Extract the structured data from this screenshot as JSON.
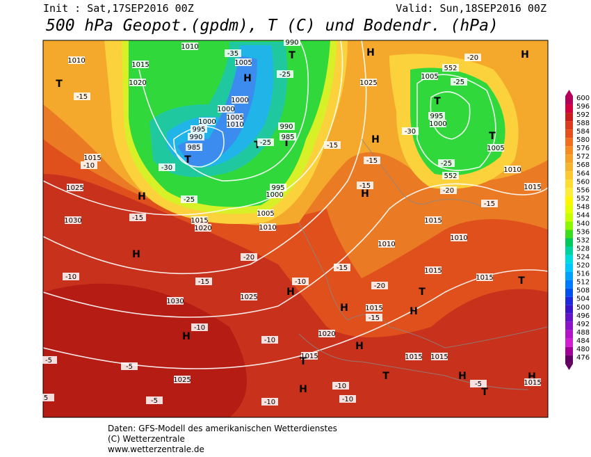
{
  "header": {
    "init": "Init : Sat,17SEP2016 00Z",
    "valid": "Valid: Sun,18SEP2016 00Z",
    "title": "500 hPa Geopot.(gpdm), T (C) und Bodendr. (hPa)"
  },
  "colorbar": {
    "labels": [
      "600",
      "596",
      "592",
      "588",
      "584",
      "580",
      "576",
      "572",
      "568",
      "564",
      "560",
      "556",
      "552",
      "548",
      "544",
      "540",
      "536",
      "532",
      "528",
      "524",
      "520",
      "516",
      "512",
      "508",
      "504",
      "500",
      "496",
      "492",
      "488",
      "484",
      "480",
      "476"
    ]
  },
  "map_labels": [
    "1010",
    "1015",
    "1020",
    "T",
    "-15",
    "1010",
    "-35",
    "1005",
    "H",
    "990",
    "T",
    "-25",
    "1000",
    "1000",
    "1005",
    "1010",
    "1000",
    "995",
    "990",
    "985",
    "T",
    "-30",
    "-25",
    "H",
    "-15",
    "1015",
    "1020",
    "1005",
    "1010",
    "995",
    "1000",
    "T",
    "T",
    "990",
    "985",
    "-25",
    "H",
    "1025",
    "H",
    "-15",
    "-15",
    "-15",
    "H",
    "H",
    "-20",
    "552",
    "1005",
    "-25",
    "T",
    "995",
    "1000",
    "-30",
    "T",
    "1005",
    "-25",
    "1010",
    "552",
    "-20",
    "1015",
    "-15",
    "1015",
    "1010",
    "1010",
    "1025",
    "1015",
    "-10",
    "1030",
    "H",
    "-20",
    "-15",
    "-15",
    "-10",
    "1030",
    "1025",
    "-10",
    "H",
    "H",
    "-20",
    "1015",
    "-15",
    "H",
    "T",
    "1015",
    "1015",
    "T",
    "H",
    "-10",
    "-10",
    "1020",
    "H",
    "1015",
    "T",
    "1015",
    "1015",
    "-5",
    "-5",
    "1025",
    "T",
    "H",
    "-5",
    "T",
    "H",
    "1015",
    "-10",
    "-10",
    "-10",
    "-5",
    "H",
    "5"
  ],
  "footer": {
    "line1": "Daten: GFS-Modell des amerikanischen Wetterdienstes",
    "line2": "(C) Wetterzentrale",
    "line3": "www.wetterzentrale.de"
  }
}
